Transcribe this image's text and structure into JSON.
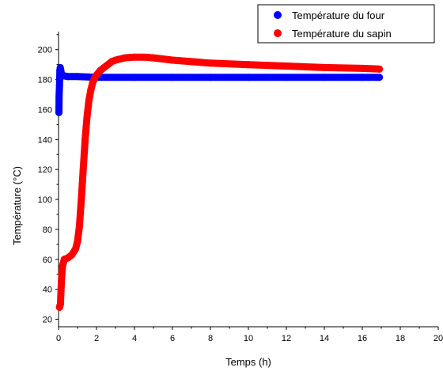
{
  "chart_data": {
    "type": "scatter",
    "xlabel": "Temps (h)",
    "ylabel": "Température (°C)",
    "xlim": [
      0,
      20
    ],
    "ylim": [
      15,
      212
    ],
    "xticks": [
      0,
      2,
      4,
      6,
      8,
      10,
      12,
      14,
      16,
      18,
      20
    ],
    "yticks": [
      20,
      40,
      60,
      80,
      100,
      120,
      140,
      160,
      180,
      200
    ],
    "grid": false,
    "legend_position": "top-right",
    "series": [
      {
        "name": "Température du four",
        "color": "#0000ff",
        "marker": "dot",
        "x": [
          0.02,
          0.03,
          0.05,
          0.07,
          0.09,
          0.12,
          0.15,
          0.2,
          0.3,
          0.5,
          1,
          2,
          4,
          6,
          8,
          10,
          12,
          14,
          16,
          16.9
        ],
        "y": [
          158,
          169,
          176,
          186,
          188,
          186,
          184,
          183,
          182.5,
          182,
          182,
          181.5,
          181.5,
          181.5,
          181.5,
          181.5,
          181.5,
          181.5,
          181.5,
          181.5
        ]
      },
      {
        "name": "Température du sapin",
        "color": "#ff0000",
        "marker": "dot",
        "x": [
          0.05,
          0.1,
          0.15,
          0.2,
          0.3,
          0.5,
          0.7,
          0.9,
          1.0,
          1.1,
          1.2,
          1.3,
          1.4,
          1.5,
          1.6,
          1.7,
          1.8,
          1.9,
          2.0,
          2.2,
          2.5,
          2.8,
          3.0,
          3.5,
          4.0,
          4.5,
          5.0,
          6.0,
          7.0,
          8.0,
          10.0,
          12.0,
          14.0,
          16.0,
          16.9
        ],
        "y": [
          28,
          30,
          45,
          55,
          60,
          61,
          63,
          67,
          72,
          82,
          100,
          120,
          140,
          155,
          166,
          173,
          178,
          181,
          183,
          186,
          189,
          192,
          193,
          194.5,
          195,
          195,
          194.5,
          193,
          192,
          191,
          190,
          189,
          188,
          187.5,
          187
        ]
      }
    ]
  }
}
